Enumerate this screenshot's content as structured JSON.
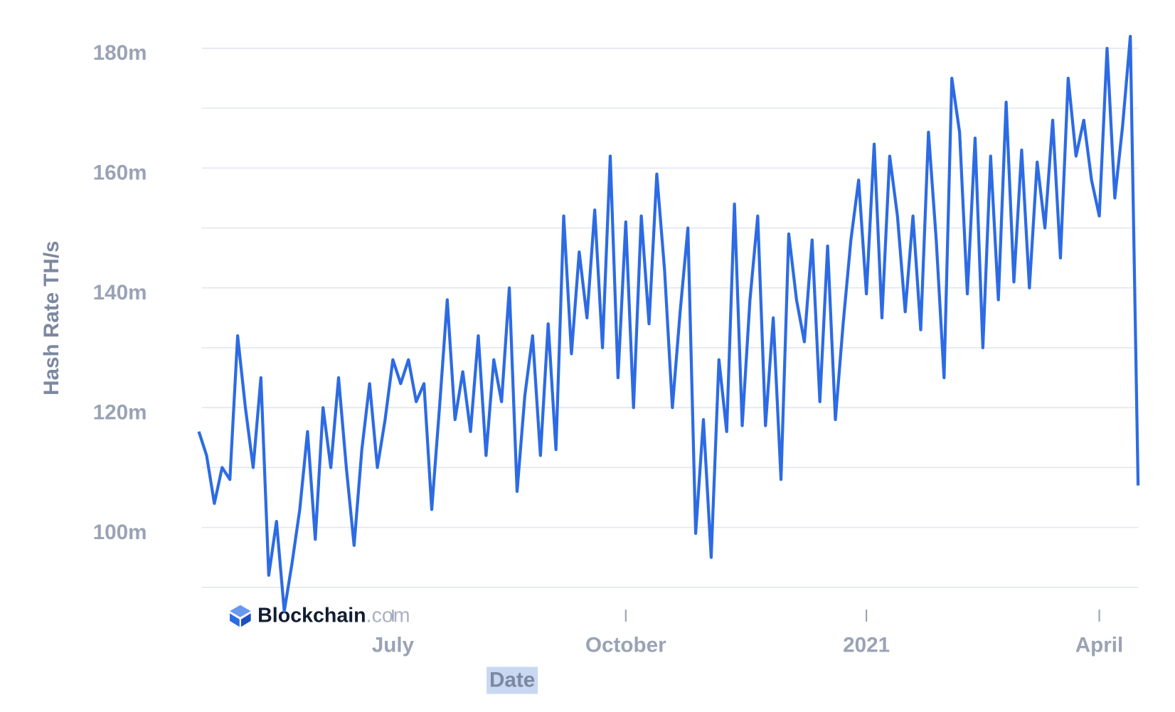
{
  "chart_data": {
    "type": "line",
    "y_label": "Hash Rate TH/s",
    "x_label": "Date",
    "watermark": {
      "brand": "Blockchain",
      "suffix": ".com"
    },
    "categories": [
      null,
      null,
      null,
      null,
      null,
      null,
      null,
      null,
      null,
      null,
      null,
      null,
      null,
      null,
      null,
      null,
      null,
      null,
      null,
      null,
      null,
      null,
      null,
      null,
      null,
      "July",
      null,
      null,
      null,
      null,
      null,
      null,
      null,
      null,
      null,
      null,
      null,
      null,
      null,
      null,
      null,
      null,
      null,
      null,
      null,
      null,
      null,
      null,
      null,
      null,
      null,
      null,
      null,
      null,
      null,
      "October",
      null,
      null,
      null,
      null,
      null,
      null,
      null,
      null,
      null,
      null,
      null,
      null,
      null,
      null,
      null,
      null,
      null,
      null,
      null,
      null,
      null,
      null,
      null,
      null,
      null,
      null,
      null,
      null,
      null,
      null,
      "2021",
      null,
      null,
      null,
      null,
      null,
      null,
      null,
      null,
      null,
      null,
      null,
      null,
      null,
      null,
      null,
      null,
      null,
      null,
      null,
      null,
      null,
      null,
      null,
      null,
      null,
      null,
      null,
      null,
      null,
      "April",
      null,
      null,
      null,
      null,
      null
    ],
    "series": [
      {
        "name": "Hash Rate",
        "color": "#2d6be4",
        "values": [
          116000000,
          112000000,
          104000000,
          110000000,
          108000000,
          132000000,
          120000000,
          110000000,
          125000000,
          92000000,
          101000000,
          86000000,
          94000000,
          103000000,
          116000000,
          98000000,
          120000000,
          110000000,
          125000000,
          110000000,
          97000000,
          113000000,
          124000000,
          110000000,
          118000000,
          128000000,
          124000000,
          128000000,
          121000000,
          124000000,
          103000000,
          120000000,
          138000000,
          118000000,
          126000000,
          116000000,
          132000000,
          112000000,
          128000000,
          121000000,
          140000000,
          106000000,
          122000000,
          132000000,
          112000000,
          134000000,
          113000000,
          152000000,
          129000000,
          146000000,
          135000000,
          153000000,
          130000000,
          162000000,
          125000000,
          151000000,
          120000000,
          152000000,
          134000000,
          159000000,
          143000000,
          120000000,
          136000000,
          150000000,
          99000000,
          118000000,
          95000000,
          128000000,
          116000000,
          154000000,
          117000000,
          138000000,
          152000000,
          117000000,
          135000000,
          108000000,
          149000000,
          138000000,
          131000000,
          148000000,
          121000000,
          147000000,
          118000000,
          134000000,
          148000000,
          158000000,
          139000000,
          164000000,
          135000000,
          162000000,
          152000000,
          136000000,
          152000000,
          133000000,
          166000000,
          148000000,
          125000000,
          175000000,
          166000000,
          139000000,
          165000000,
          130000000,
          162000000,
          138000000,
          171000000,
          141000000,
          163000000,
          140000000,
          161000000,
          150000000,
          168000000,
          145000000,
          175000000,
          162000000,
          168000000,
          158000000,
          152000000,
          180000000,
          155000000,
          167000000,
          182000000,
          107000000
        ]
      }
    ],
    "ylim": [
      81000000,
      182500000
    ],
    "yticks": [
      {
        "value": 100000000,
        "label": "100m"
      },
      {
        "value": 120000000,
        "label": "120m"
      },
      {
        "value": 140000000,
        "label": "140m"
      },
      {
        "value": 160000000,
        "label": "160m"
      },
      {
        "value": 180000000,
        "label": "180m"
      }
    ],
    "yminor": [
      90000000,
      110000000,
      130000000,
      150000000,
      170000000
    ],
    "grid": true
  }
}
